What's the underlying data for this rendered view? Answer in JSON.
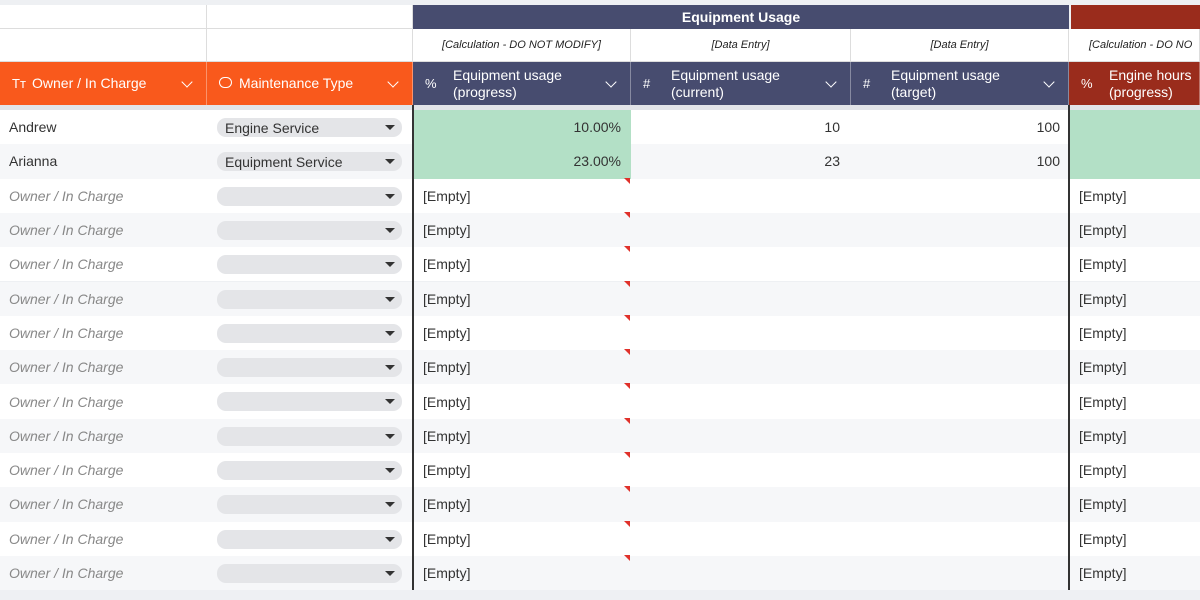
{
  "groups": [
    {
      "title": "Equipment Usage",
      "color": "#474c6f"
    }
  ],
  "notes": [
    "[Calculation - DO NOT MODIFY]",
    "[Data Entry]",
    "[Data Entry]",
    "[Calculation - DO NO"
  ],
  "columns": [
    {
      "icon": "Tт",
      "label": "Owner / In Charge",
      "color": "#f9591c"
    },
    {
      "label": "Maintenance Type",
      "color": "#f9591c"
    },
    {
      "icon": "%",
      "label": "Equipment usage (progress)",
      "color": "#474c6f"
    },
    {
      "icon": "#",
      "label": "Equipment usage (current)",
      "color": "#474c6f"
    },
    {
      "icon": "#",
      "label": "Equipment usage (target)",
      "color": "#474c6f"
    },
    {
      "icon": "%",
      "label": "Engine hours (progress)",
      "color": "#9a2c1c"
    }
  ],
  "rows": [
    {
      "owner": "Andrew",
      "type": "Engine Service",
      "progress": "10.00%",
      "current": 10,
      "target": 100,
      "fill": "#b3e0c6"
    },
    {
      "owner": "Arianna",
      "type": "Equipment Service",
      "progress": "23.00%",
      "current": 23,
      "target": 100,
      "fill": "#b3e0c6"
    },
    {
      "owner_placeholder": "Owner / In Charge",
      "progress": "[Empty]",
      "engine_hours": "[Empty]"
    },
    {
      "owner_placeholder": "Owner / In Charge",
      "progress": "[Empty]",
      "engine_hours": "[Empty]"
    },
    {
      "owner_placeholder": "Owner / In Charge",
      "progress": "[Empty]",
      "engine_hours": "[Empty]"
    },
    {
      "owner_placeholder": "Owner / In Charge",
      "progress": "[Empty]",
      "engine_hours": "[Empty]"
    },
    {
      "owner_placeholder": "Owner / In Charge",
      "progress": "[Empty]",
      "engine_hours": "[Empty]"
    },
    {
      "owner_placeholder": "Owner / In Charge",
      "progress": "[Empty]",
      "engine_hours": "[Empty]"
    },
    {
      "owner_placeholder": "Owner / In Charge",
      "progress": "[Empty]",
      "engine_hours": "[Empty]"
    },
    {
      "owner_placeholder": "Owner / In Charge",
      "progress": "[Empty]",
      "engine_hours": "[Empty]"
    },
    {
      "owner_placeholder": "Owner / In Charge",
      "progress": "[Empty]",
      "engine_hours": "[Empty]"
    },
    {
      "owner_placeholder": "Owner / In Charge",
      "progress": "[Empty]",
      "engine_hours": "[Empty]"
    },
    {
      "owner_placeholder": "Owner / In Charge",
      "progress": "[Empty]",
      "engine_hours": "[Empty]"
    },
    {
      "owner_placeholder": "Owner / In Charge",
      "progress": "[Empty]",
      "engine_hours": "[Empty]"
    }
  ]
}
